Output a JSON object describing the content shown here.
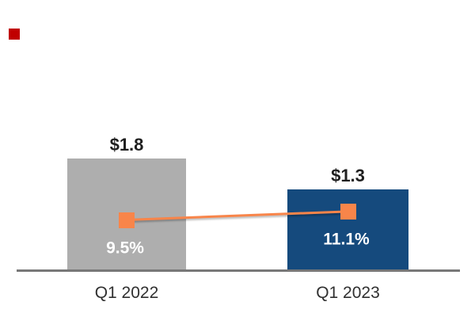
{
  "page": {
    "background_color": "#FFFFFF"
  },
  "accent": {
    "red_square_color": "#C00000"
  },
  "chart_data": {
    "type": "combo_bar_line",
    "title": "",
    "legend": false,
    "gridlines": false,
    "y_axis_visible": false,
    "categories": [
      "Q1 2022",
      "Q1 2023"
    ],
    "series": [
      {
        "name": "dollar-value-bars",
        "type": "bar",
        "values": [
          1.8,
          1.3
        ],
        "labels": [
          "$1.8",
          "$1.3"
        ],
        "colors": [
          "#AEAEAE",
          "#154A7D"
        ],
        "label_color": "#1F1F1F"
      },
      {
        "name": "percent-line",
        "type": "line",
        "marker": "square",
        "values": [
          9.5,
          11.1
        ],
        "labels": [
          "9.5%",
          "11.1%"
        ],
        "color": "#F8854A",
        "label_color": "#FFFFFF"
      }
    ],
    "axis": {
      "baseline_color": "#787878",
      "category_label_color": "#303030"
    }
  }
}
